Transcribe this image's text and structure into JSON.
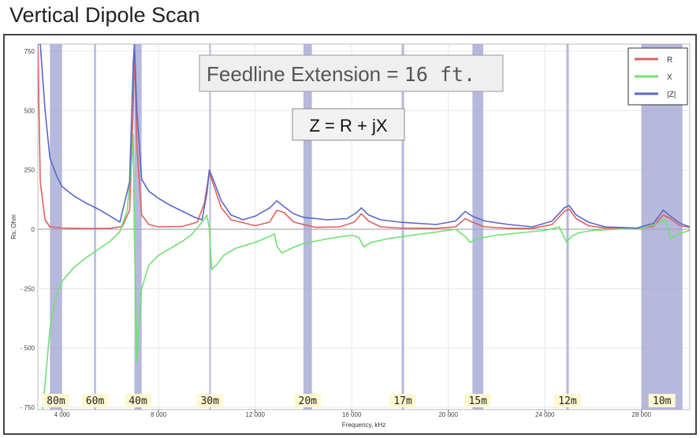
{
  "page": {
    "title": "Vertical Dipole Scan"
  },
  "annotations": {
    "feedline_label": "Feedline Extension = ",
    "feedline_value": "16 ft.",
    "formula": "Z = R + jX"
  },
  "chart_data": {
    "type": "line",
    "xlabel": "Frequency, kHz",
    "ylabel": "Rs, Ohm",
    "xlim": [
      3000,
      30000
    ],
    "ylim": [
      -760,
      780
    ],
    "xticks": [
      4000,
      8000,
      12000,
      16000,
      20000,
      24000,
      28000
    ],
    "xtick_labels": [
      "4 000",
      "8 000",
      "12 000",
      "16 000",
      "20 000",
      "24 000",
      "28 000"
    ],
    "yticks": [
      -750,
      -500,
      -250,
      0,
      250,
      500,
      750
    ],
    "ytick_labels": [
      "- 750",
      "- 500",
      "- 250",
      "0",
      "250",
      "500",
      "750"
    ],
    "grid": true,
    "legend": "top-right",
    "bands": [
      {
        "label": "80m",
        "start": 3500,
        "end": 4000
      },
      {
        "label": "60m",
        "start": 5330,
        "end": 5410
      },
      {
        "label": "40m",
        "start": 7000,
        "end": 7300
      },
      {
        "label": "30m",
        "start": 10100,
        "end": 10150
      },
      {
        "label": "20m",
        "start": 14000,
        "end": 14350
      },
      {
        "label": "17m",
        "start": 18068,
        "end": 18168
      },
      {
        "label": "15m",
        "start": 21000,
        "end": 21450
      },
      {
        "label": "12m",
        "start": 24890,
        "end": 24990
      },
      {
        "label": "10m",
        "start": 28000,
        "end": 29700
      }
    ],
    "series": [
      {
        "name": "R",
        "color": "#e06060",
        "x": [
          3000,
          3100,
          3300,
          3500,
          4000,
          5000,
          6000,
          6500,
          6800,
          6950,
          7000,
          7100,
          7300,
          7600,
          8000,
          9000,
          9600,
          9900,
          10100,
          10300,
          10600,
          11000,
          12000,
          12600,
          12900,
          13200,
          13600,
          14500,
          15500,
          16100,
          16400,
          16700,
          17200,
          18000,
          19500,
          20300,
          20700,
          21000,
          21500,
          22500,
          23500,
          24300,
          24800,
          25000,
          25300,
          25800,
          26500,
          27800,
          28500,
          28900,
          29200,
          29600,
          30000
        ],
        "y": [
          780,
          200,
          40,
          10,
          5,
          3,
          4,
          12,
          80,
          500,
          780,
          350,
          60,
          20,
          10,
          12,
          30,
          110,
          240,
          180,
          90,
          40,
          15,
          30,
          80,
          70,
          30,
          8,
          10,
          30,
          65,
          35,
          10,
          5,
          4,
          10,
          45,
          30,
          10,
          4,
          4,
          20,
          75,
          85,
          45,
          15,
          5,
          4,
          12,
          60,
          45,
          15,
          8
        ]
      },
      {
        "name": "X",
        "color": "#70e070",
        "x": [
          3200,
          3300,
          3500,
          3700,
          4000,
          4500,
          5000,
          5500,
          6000,
          6400,
          6700,
          6900,
          6950,
          7000,
          7100,
          7300,
          7600,
          8000,
          8500,
          9000,
          9400,
          9800,
          10000,
          10100,
          10200,
          10400,
          10700,
          11200,
          12000,
          12600,
          12800,
          12900,
          13100,
          13500,
          14000,
          15000,
          16000,
          16300,
          16500,
          16800,
          17500,
          18500,
          19500,
          20300,
          20700,
          20900,
          21200,
          22000,
          23000,
          24000,
          24600,
          24900,
          25100,
          25400,
          26000,
          27000,
          28000,
          28700,
          29000,
          29200,
          29500,
          30000
        ],
        "y": [
          -760,
          -650,
          -420,
          -300,
          -220,
          -160,
          -120,
          -85,
          -50,
          -10,
          80,
          300,
          400,
          -40,
          -560,
          -250,
          -150,
          -110,
          -80,
          -50,
          -20,
          30,
          60,
          5,
          -170,
          -150,
          -110,
          -80,
          -55,
          -30,
          -20,
          -70,
          -100,
          -80,
          -60,
          -40,
          -25,
          -35,
          -75,
          -55,
          -40,
          -25,
          -12,
          0,
          -30,
          -55,
          -40,
          -25,
          -15,
          -5,
          10,
          -55,
          -30,
          -15,
          -5,
          0,
          5,
          25,
          40,
          -40,
          -20,
          -5
        ]
      },
      {
        "name": "|Z|",
        "color": "#5a68c8",
        "x": [
          3000,
          3100,
          3300,
          3500,
          3800,
          4000,
          4500,
          5000,
          5500,
          6000,
          6400,
          6800,
          6950,
          7000,
          7100,
          7300,
          7600,
          8000,
          8500,
          9000,
          9500,
          9800,
          10000,
          10100,
          10300,
          10600,
          11000,
          11500,
          12000,
          12600,
          12900,
          13200,
          13600,
          14000,
          15000,
          15800,
          16200,
          16400,
          16700,
          17200,
          18000,
          19500,
          20300,
          20700,
          21000,
          21500,
          22500,
          23500,
          24300,
          24800,
          25000,
          25300,
          25800,
          26500,
          27800,
          28500,
          28900,
          29200,
          29600,
          30000
        ],
        "y": [
          780,
          780,
          500,
          300,
          220,
          180,
          140,
          110,
          85,
          55,
          30,
          200,
          700,
          780,
          500,
          210,
          160,
          130,
          100,
          75,
          50,
          40,
          150,
          250,
          200,
          120,
          60,
          40,
          55,
          90,
          120,
          95,
          65,
          50,
          40,
          45,
          70,
          90,
          60,
          40,
          30,
          20,
          35,
          75,
          55,
          35,
          20,
          10,
          35,
          90,
          100,
          60,
          30,
          10,
          5,
          25,
          80,
          55,
          25,
          10
        ]
      }
    ]
  }
}
